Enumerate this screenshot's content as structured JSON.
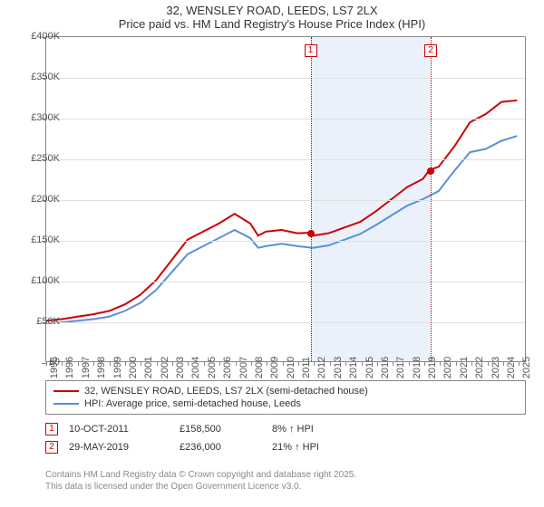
{
  "title_line1": "32, WENSLEY ROAD, LEEDS, LS7 2LX",
  "title_line2": "Price paid vs. HM Land Registry's House Price Index (HPI)",
  "chart": {
    "type": "line",
    "background_color": "#ffffff",
    "grid_color": "#e0e0e0",
    "plot_border_color": "#888888",
    "shaded_band": {
      "from": 2011.78,
      "to": 2019.41,
      "color": "#eaf1fb"
    },
    "x": {
      "min": 1995,
      "max": 2025.5,
      "ticks": [
        1995,
        1996,
        1997,
        1998,
        1999,
        2000,
        2001,
        2002,
        2003,
        2004,
        2005,
        2006,
        2007,
        2008,
        2009,
        2010,
        2011,
        2012,
        2013,
        2014,
        2015,
        2016,
        2017,
        2018,
        2019,
        2020,
        2021,
        2022,
        2023,
        2024,
        2025
      ]
    },
    "y": {
      "min": 0,
      "max": 400000,
      "ticks": [
        0,
        50000,
        100000,
        150000,
        200000,
        250000,
        300000,
        350000,
        400000
      ],
      "labels": [
        "£0",
        "£50K",
        "£100K",
        "£150K",
        "£200K",
        "£250K",
        "£300K",
        "£350K",
        "£400K"
      ]
    },
    "ref_lines": [
      {
        "label": "1",
        "x": 2011.78,
        "color": "#cc0000"
      },
      {
        "label": "2",
        "x": 2019.41,
        "color": "#cc0000"
      }
    ],
    "series": [
      {
        "name": "32, WENSLEY ROAD, LEEDS, LS7 2LX (semi-detached house)",
        "color": "#cc0000",
        "width": 2,
        "points": [
          [
            1995,
            50000
          ],
          [
            1996,
            52000
          ],
          [
            1997,
            55000
          ],
          [
            1998,
            58000
          ],
          [
            1999,
            62000
          ],
          [
            2000,
            70000
          ],
          [
            2001,
            82000
          ],
          [
            2002,
            100000
          ],
          [
            2003,
            125000
          ],
          [
            2004,
            150000
          ],
          [
            2005,
            160000
          ],
          [
            2006,
            170000
          ],
          [
            2007,
            182000
          ],
          [
            2008,
            170000
          ],
          [
            2008.5,
            155000
          ],
          [
            2009,
            160000
          ],
          [
            2010,
            162000
          ],
          [
            2011,
            158000
          ],
          [
            2011.78,
            158500
          ],
          [
            2012,
            155000
          ],
          [
            2013,
            158000
          ],
          [
            2014,
            165000
          ],
          [
            2015,
            172000
          ],
          [
            2016,
            185000
          ],
          [
            2017,
            200000
          ],
          [
            2018,
            215000
          ],
          [
            2019,
            225000
          ],
          [
            2019.41,
            236000
          ],
          [
            2020,
            240000
          ],
          [
            2021,
            265000
          ],
          [
            2022,
            295000
          ],
          [
            2023,
            305000
          ],
          [
            2024,
            320000
          ],
          [
            2025,
            322000
          ]
        ],
        "markers": [
          {
            "x": 2011.78,
            "y": 158500,
            "color": "#cc0000"
          },
          {
            "x": 2019.41,
            "y": 236000,
            "color": "#cc0000"
          }
        ]
      },
      {
        "name": "HPI: Average price, semi-detached house, Leeds",
        "color": "#5b8fd6",
        "width": 2,
        "points": [
          [
            1995,
            47000
          ],
          [
            1996,
            48000
          ],
          [
            1997,
            50000
          ],
          [
            1998,
            52000
          ],
          [
            1999,
            55000
          ],
          [
            2000,
            62000
          ],
          [
            2001,
            72000
          ],
          [
            2002,
            88000
          ],
          [
            2003,
            110000
          ],
          [
            2004,
            132000
          ],
          [
            2005,
            142000
          ],
          [
            2006,
            152000
          ],
          [
            2007,
            162000
          ],
          [
            2008,
            152000
          ],
          [
            2008.5,
            140000
          ],
          [
            2009,
            142000
          ],
          [
            2010,
            145000
          ],
          [
            2011,
            142000
          ],
          [
            2012,
            140000
          ],
          [
            2013,
            143000
          ],
          [
            2014,
            150000
          ],
          [
            2015,
            157000
          ],
          [
            2016,
            168000
          ],
          [
            2017,
            180000
          ],
          [
            2018,
            192000
          ],
          [
            2019,
            200000
          ],
          [
            2020,
            210000
          ],
          [
            2021,
            235000
          ],
          [
            2022,
            258000
          ],
          [
            2023,
            262000
          ],
          [
            2024,
            272000
          ],
          [
            2025,
            278000
          ]
        ]
      }
    ]
  },
  "legend": [
    {
      "color": "#cc0000",
      "label": "32, WENSLEY ROAD, LEEDS, LS7 2LX (semi-detached house)"
    },
    {
      "color": "#5b8fd6",
      "label": "HPI: Average price, semi-detached house, Leeds"
    }
  ],
  "sales": [
    {
      "idx": "1",
      "date": "10-OCT-2011",
      "price": "£158,500",
      "pct": "8% ↑ HPI"
    },
    {
      "idx": "2",
      "date": "29-MAY-2019",
      "price": "£236,000",
      "pct": "21% ↑ HPI"
    }
  ],
  "footer_line1": "Contains HM Land Registry data © Crown copyright and database right 2025.",
  "footer_line2": "This data is licensed under the Open Government Licence v3.0."
}
